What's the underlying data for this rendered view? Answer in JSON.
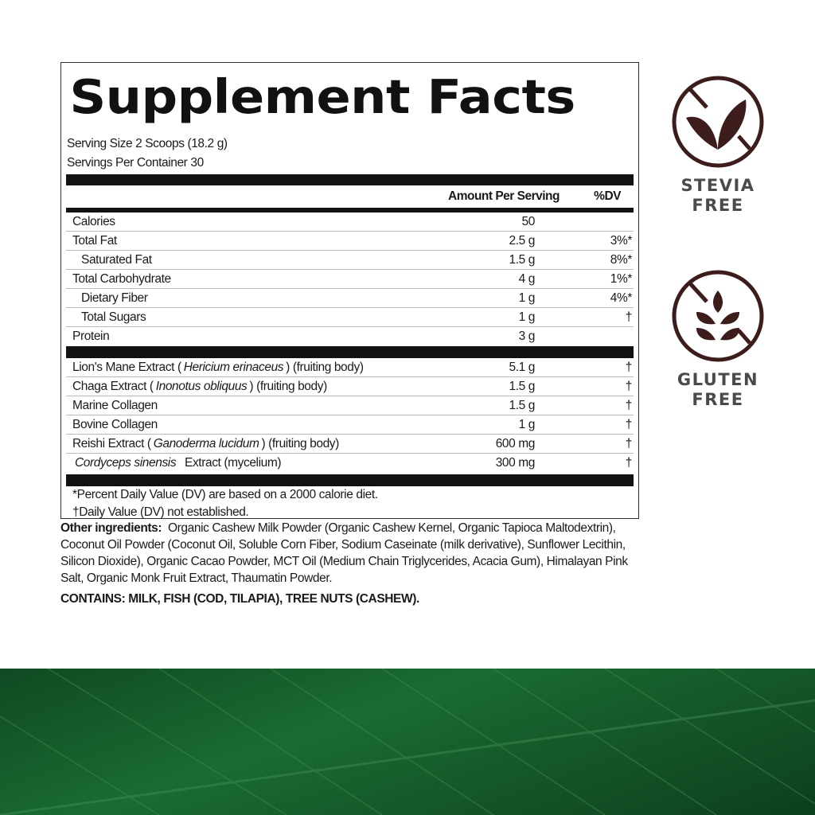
{
  "title": "Supplement Facts",
  "serving_size": "Serving Size 2 Scoops (18.2 g)",
  "servings_per_container": "Servings Per Container 30",
  "header": {
    "amount": "Amount Per Serving",
    "dv": "%DV"
  },
  "nutrients": [
    {
      "name": "Calories",
      "amount": "50",
      "dv": ""
    },
    {
      "name": "Total Fat",
      "amount": "2.5 g",
      "dv": "3%*"
    },
    {
      "name": "Saturated Fat",
      "amount": "1.5 g",
      "dv": "8%*"
    },
    {
      "name": "Total Carbohydrate",
      "amount": "4 g",
      "dv": "1%*"
    },
    {
      "name": "Dietary Fiber",
      "amount": "1 g",
      "dv": "4%*"
    },
    {
      "name": "Total Sugars",
      "amount": "1 g",
      "dv": "†"
    },
    {
      "name": "Protein",
      "amount": "3 g",
      "dv": ""
    }
  ],
  "ingredients": [
    {
      "pre": "Lion's Mane Extract (",
      "latin": "Hericium erinaceus",
      "post": ") (fruiting body)",
      "amount": "5.1 g",
      "dv": "†"
    },
    {
      "pre": "Chaga Extract (",
      "latin": "Inonotus obliquus",
      "post": ") (fruiting body)",
      "amount": "1.5 g",
      "dv": "†"
    },
    {
      "pre": "Marine Collagen",
      "latin": "",
      "post": "",
      "amount": "1.5 g",
      "dv": "†"
    },
    {
      "pre": "Bovine Collagen",
      "latin": "",
      "post": "",
      "amount": "1 g",
      "dv": "†"
    },
    {
      "pre": "Reishi Extract (",
      "latin": "Ganoderma lucidum",
      "post": ") (fruiting body)",
      "amount": "600 mg",
      "dv": "†"
    },
    {
      "pre": "",
      "latin": "Cordyceps sinensis",
      "post": "  Extract (mycelium)",
      "amount": "300 mg",
      "dv": "†"
    }
  ],
  "footnotes": [
    "*Percent Daily Value (DV) are based on a 2000 calorie diet.",
    "†Daily Value (DV) not established."
  ],
  "other_label": "Other ingredients:",
  "other_text": "Organic Cashew Milk Powder (Organic Cashew Kernel, Organic Tapioca Maltodextrin), Coconut Oil Powder (Coconut Oil, Soluble Corn Fiber, Sodium Caseinate (milk derivative), Sunflower Lecithin, Silicon Dioxide), Organic Cacao Powder, MCT Oil (Medium Chain Triglycerides, Acacia Gum), Himalayan Pink Salt, Organic Monk Fruit Extract, Thaumatin Powder.",
  "contains": "CONTAINS: MILK, FISH (COD, TILAPIA), TREE NUTS (CASHEW).",
  "badges": [
    {
      "icon": "no-stevia-leaf-icon",
      "line1": "STEVIA",
      "line2": "FREE"
    },
    {
      "icon": "no-gluten-wheat-icon",
      "line1": "GLUTEN",
      "line2": "FREE"
    }
  ],
  "colors": {
    "badge_icon": "#3d1c1c",
    "badge_text": "#4a4a4a",
    "footer_green": "#1a6b32"
  }
}
